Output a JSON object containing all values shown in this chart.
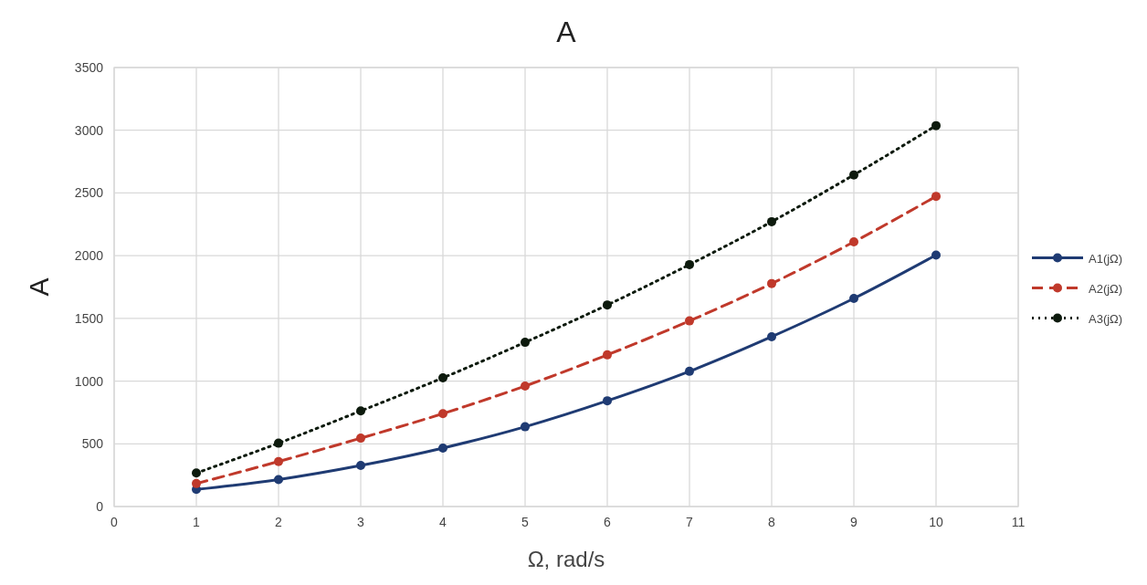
{
  "chart_data": {
    "type": "line",
    "title": "A",
    "xlabel": "Ω, rad/s",
    "ylabel": "A",
    "x": [
      1,
      2,
      3,
      4,
      5,
      6,
      7,
      8,
      9,
      10
    ],
    "series": [
      {
        "name": "A1(jΩ)",
        "color": "#1f3b73",
        "line_style": "solid",
        "values": [
          136,
          215,
          327,
          466,
          636,
          843,
          1078,
          1354,
          1659,
          2005
        ]
      },
      {
        "name": "A2(jΩ)",
        "color": "#c0392b",
        "line_style": "dashed",
        "values": [
          183,
          359,
          545,
          741,
          961,
          1209,
          1480,
          1778,
          2110,
          2473
        ]
      },
      {
        "name": "A3(jΩ)",
        "color": "#0d1a0d",
        "line_style": "dotted",
        "values": [
          267,
          505,
          762,
          1026,
          1309,
          1607,
          1929,
          2271,
          2644,
          3037
        ]
      }
    ],
    "xlim": [
      0,
      11
    ],
    "xticks": [
      0,
      1,
      2,
      3,
      4,
      5,
      6,
      7,
      8,
      9,
      10,
      11
    ],
    "ylim": [
      0,
      3500
    ],
    "yticks": [
      0,
      500,
      1000,
      1500,
      2000,
      2500,
      3000,
      3500
    ],
    "grid": true,
    "legend": "right",
    "marker": "circle"
  }
}
